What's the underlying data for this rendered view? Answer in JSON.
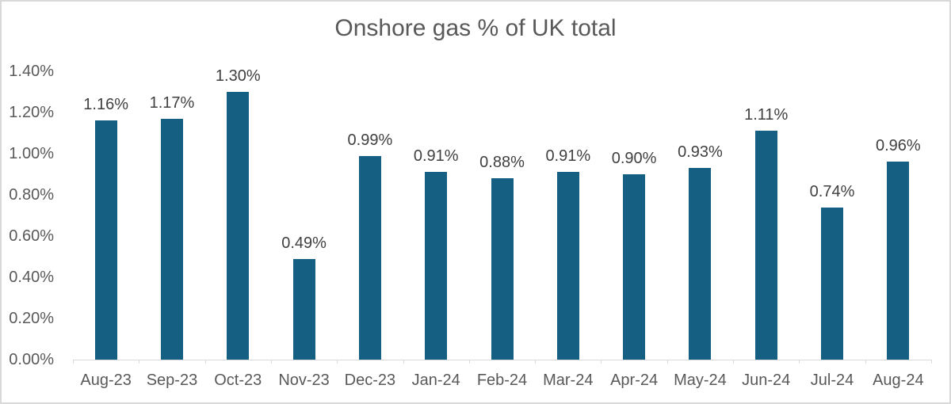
{
  "chart_data": {
    "type": "bar",
    "title": "Onshore gas % of UK total",
    "categories": [
      "Aug-23",
      "Sep-23",
      "Oct-23",
      "Nov-23",
      "Dec-23",
      "Jan-24",
      "Feb-24",
      "Mar-24",
      "Apr-24",
      "May-24",
      "Jun-24",
      "Jul-24",
      "Aug-24"
    ],
    "values": [
      1.16,
      1.17,
      1.3,
      0.49,
      0.99,
      0.91,
      0.88,
      0.91,
      0.9,
      0.93,
      1.11,
      0.74,
      0.96
    ],
    "data_labels": [
      "1.16%",
      "1.17%",
      "1.30%",
      "0.49%",
      "0.99%",
      "0.91%",
      "0.88%",
      "0.91%",
      "0.90%",
      "0.93%",
      "1.11%",
      "0.74%",
      "0.96%"
    ],
    "y_tick_labels": [
      "1.40%",
      "1.20%",
      "1.00%",
      "0.80%",
      "0.60%",
      "0.40%",
      "0.20%",
      "0.00%"
    ],
    "ylim": [
      0,
      1.4
    ],
    "xlabel": "",
    "ylabel": "",
    "grid": false,
    "legend": "none",
    "colors": {
      "bar": "#156082",
      "title_text": "#595959",
      "axis_tick_text": "#595959",
      "data_label_text": "#404040",
      "axis_line": "#d9d9d9",
      "chart_border": "#d9d9d9",
      "background": "#ffffff"
    }
  }
}
